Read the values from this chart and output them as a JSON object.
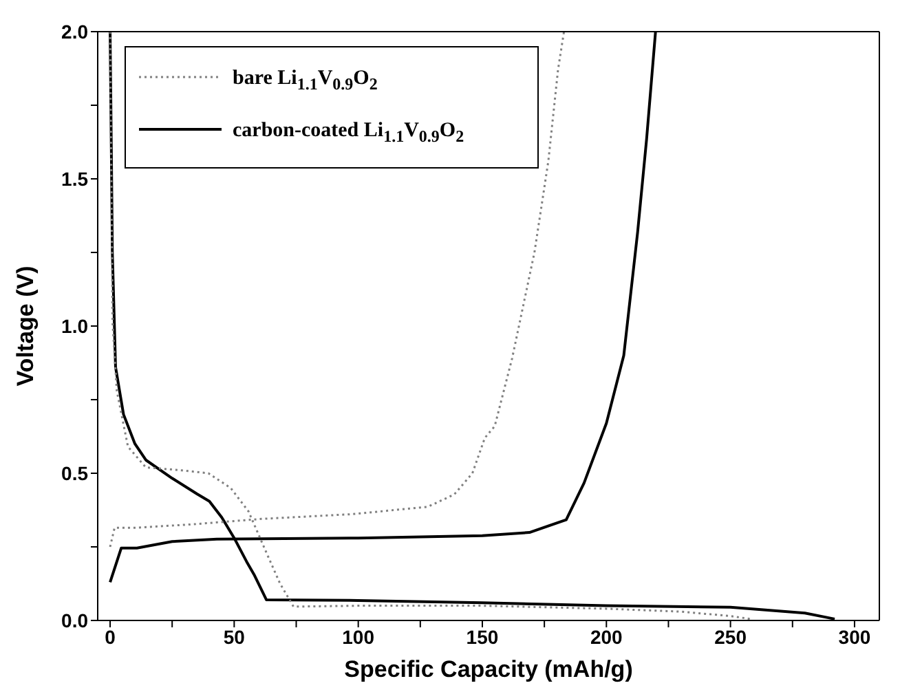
{
  "chart_data": {
    "type": "line",
    "xlabel": "Specific Capacity (mAh/g)",
    "ylabel": "Voltage (V)",
    "xlim": [
      -5,
      310
    ],
    "ylim": [
      0,
      2
    ],
    "xticks": [
      0,
      {
        "value": 25,
        "label": null
      },
      50,
      {
        "value": 75,
        "label": null
      },
      100,
      {
        "value": 125,
        "label": null
      },
      150,
      {
        "value": 175,
        "label": null
      },
      200,
      {
        "value": 225,
        "label": null
      },
      250,
      {
        "value": 275,
        "label": null
      },
      300
    ],
    "yticks": [
      {
        "value": 0,
        "label": "0.0"
      },
      {
        "value": 0.25,
        "label": null
      },
      {
        "value": 0.5,
        "label": "0.5"
      },
      {
        "value": 0.75,
        "label": null
      },
      {
        "value": 1,
        "label": "1.0"
      },
      {
        "value": 1.25,
        "label": null
      },
      {
        "value": 1.5,
        "label": "1.5"
      },
      {
        "value": 1.75,
        "label": null
      },
      {
        "value": 2,
        "label": "2.0"
      }
    ],
    "grid": false,
    "legend": "top left",
    "marker": "none",
    "series": [
      {
        "name": "bare Li$_{1.1}$V$_{0.9}$O$_{2}$",
        "color": "#808080",
        "line_style": "dotted",
        "x": [
          0,
          0.5,
          1,
          2.7,
          7.2,
          14.4,
          28.8,
          39.6,
          48.6,
          55.8,
          63,
          68.5,
          73.9,
          100,
          150,
          200,
          230,
          250,
          258
        ],
        "values": [
          2.0,
          1.5,
          1.01,
          0.78,
          0.59,
          0.52,
          0.51,
          0.5,
          0.45,
          0.37,
          0.23,
          0.125,
          0.047,
          0.05,
          0.05,
          0.04,
          0.03,
          0.015,
          0.005
        ]
      },
      {
        "color": "#808080",
        "line_style": "dotted",
        "x": [
          0,
          1.8,
          10.8,
          34,
          61,
          97.3,
          128,
          138.7,
          146,
          151,
          155,
          162,
          171,
          176.6,
          180.5,
          182.9
        ],
        "values": [
          0.25,
          0.315,
          0.315,
          0.327,
          0.345,
          0.361,
          0.386,
          0.428,
          0.5,
          0.62,
          0.66,
          0.89,
          1.25,
          1.56,
          1.87,
          2.0
        ]
      },
      {
        "name": "carbon-coated Li$_{1.1}$V$_{0.9}$O$_{2}$",
        "color": "#000000",
        "line_style": "solid",
        "x": [
          0,
          0.5,
          0.9,
          2.2,
          5.4,
          10,
          14.4,
          25,
          35,
          40,
          45,
          50,
          55,
          58,
          63,
          100,
          150,
          200,
          250,
          280,
          292
        ],
        "values": [
          2.0,
          1.6,
          1.25,
          0.86,
          0.7,
          0.6,
          0.545,
          0.483,
          0.43,
          0.405,
          0.35,
          0.28,
          0.2,
          0.156,
          0.07,
          0.068,
          0.06,
          0.05,
          0.045,
          0.025,
          0.005
        ]
      },
      {
        "color": "#000000",
        "line_style": "solid",
        "x": [
          0,
          4.5,
          10.8,
          25,
          43,
          100,
          150,
          169,
          183.8,
          191,
          200,
          207,
          212.6,
          216.2,
          219.8
        ],
        "values": [
          0.13,
          0.246,
          0.246,
          0.268,
          0.276,
          0.28,
          0.288,
          0.299,
          0.342,
          0.467,
          0.67,
          0.9,
          1.32,
          1.635,
          2.0
        ]
      }
    ]
  }
}
